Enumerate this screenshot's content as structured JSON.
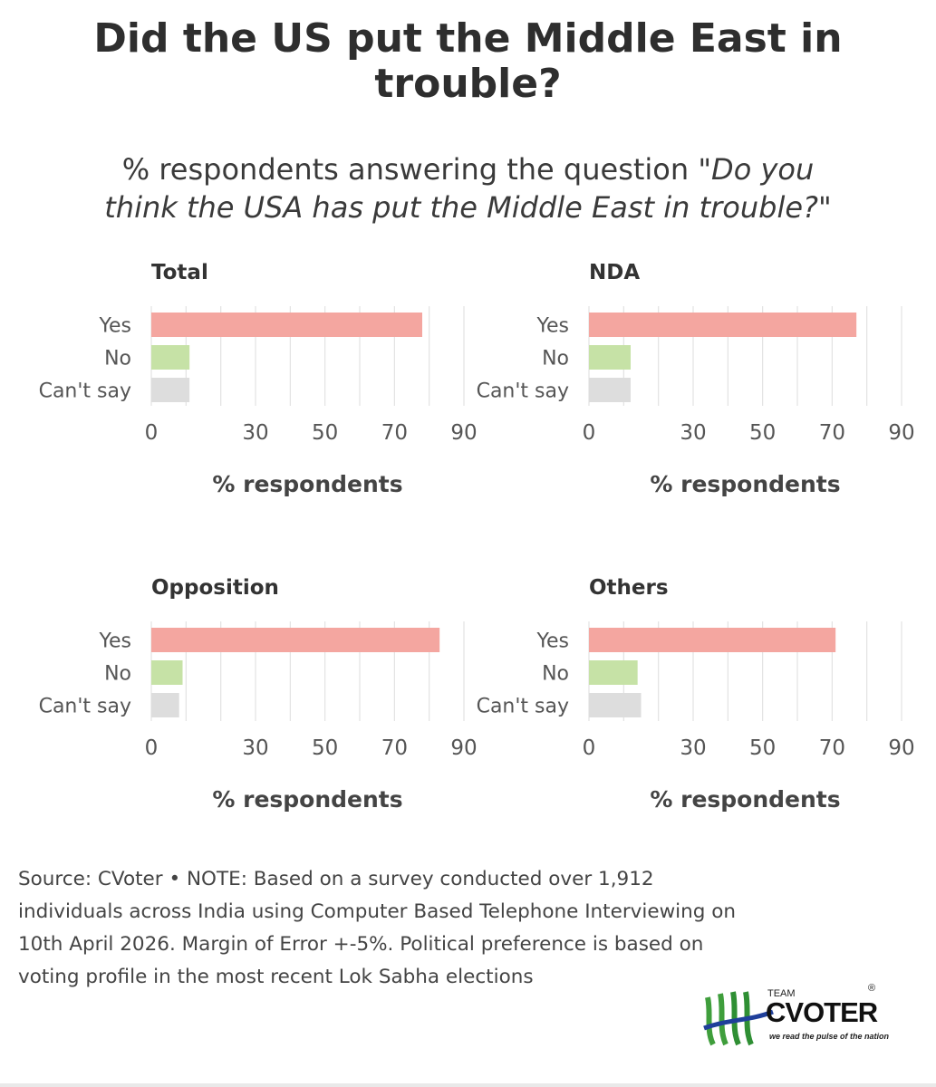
{
  "title_lines": [
    "Did the US put the Middle East in",
    "trouble?"
  ],
  "subtitle": {
    "prefix": "% respondents answering the question ",
    "question_line1": "\"Do you",
    "question_line2": "think the USA has put the Middle East in trouble?\""
  },
  "colors": {
    "yes": "#f4a6a0",
    "no": "#c6e2a6",
    "cant_say": "#dddddd",
    "grid": "#e2e2e2"
  },
  "chart_data": [
    {
      "type": "bar",
      "orientation": "horizontal",
      "title": "Total",
      "categories": [
        "Yes",
        "No",
        "Can't say"
      ],
      "values": [
        78,
        11,
        11
      ],
      "xlabel": "% respondents",
      "xlim": [
        0,
        90
      ],
      "ticks": [
        0,
        30,
        50,
        70,
        90
      ]
    },
    {
      "type": "bar",
      "orientation": "horizontal",
      "title": "NDA",
      "categories": [
        "Yes",
        "No",
        "Can't say"
      ],
      "values": [
        77,
        12,
        12
      ],
      "xlabel": "% respondents",
      "xlim": [
        0,
        90
      ],
      "ticks": [
        0,
        30,
        50,
        70,
        90
      ]
    },
    {
      "type": "bar",
      "orientation": "horizontal",
      "title": "Opposition",
      "categories": [
        "Yes",
        "No",
        "Can't say"
      ],
      "values": [
        83,
        9,
        8
      ],
      "xlabel": "% respondents",
      "xlim": [
        0,
        90
      ],
      "ticks": [
        0,
        30,
        50,
        70,
        90
      ]
    },
    {
      "type": "bar",
      "orientation": "horizontal",
      "title": "Others",
      "categories": [
        "Yes",
        "No",
        "Can't say"
      ],
      "values": [
        71,
        14,
        15
      ],
      "xlabel": "% respondents",
      "xlim": [
        0,
        90
      ],
      "ticks": [
        0,
        30,
        50,
        70,
        90
      ]
    }
  ],
  "note_lines": [
    "Source: CVoter • NOTE: Based on a survey conducted over 1,912",
    "individuals across India using Computer Based Telephone Interviewing on",
    "10th April 2026. Margin of Error +-5%. Political preference is based on",
    "voting profile in the most recent Lok Sabha elections"
  ],
  "logo": {
    "team": "TEAM",
    "brand": "CVOTER",
    "reg": "®",
    "tagline": "we read the pulse of the nation"
  }
}
